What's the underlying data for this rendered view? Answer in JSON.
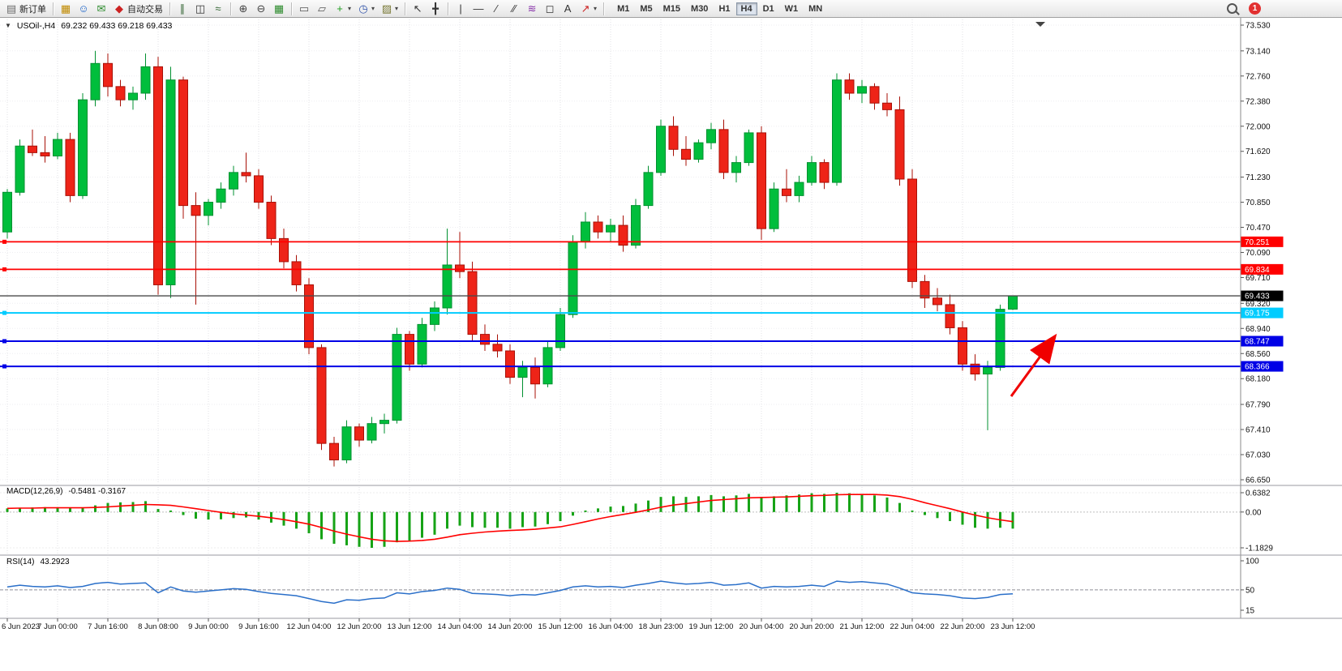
{
  "toolbar": {
    "new_order": "新订单",
    "auto_trading": "自动交易",
    "notification_badge": "1",
    "items": [
      {
        "name": "new-order",
        "glyph": "▤",
        "color": "#6b6b6b",
        "label": "新订单"
      },
      {
        "sep": true
      },
      {
        "name": "data-window",
        "glyph": "▦",
        "color": "#c08a00"
      },
      {
        "name": "navigator",
        "glyph": "☺",
        "color": "#1a62c8"
      },
      {
        "name": "terminal",
        "glyph": "✉",
        "color": "#2a8a2a"
      },
      {
        "name": "auto-trading",
        "glyph": "◆",
        "color": "#cc2222",
        "label": "自动交易"
      },
      {
        "sep": true
      },
      {
        "name": "bar-chart",
        "glyph": "∥",
        "color": "#3a6a3a"
      },
      {
        "name": "candlestick-chart",
        "glyph": "◫",
        "color": "#333333"
      },
      {
        "name": "line-chart",
        "glyph": "≈",
        "color": "#336633"
      },
      {
        "sep": true
      },
      {
        "name": "zoom-in",
        "glyph": "⊕",
        "color": "#444444"
      },
      {
        "name": "zoom-out",
        "glyph": "⊖",
        "color": "#444444"
      },
      {
        "name": "tile-windows",
        "glyph": "▦",
        "color": "#2a8a2a"
      },
      {
        "sep": true
      },
      {
        "name": "cascade-windows",
        "glyph": "▭",
        "color": "#555555"
      },
      {
        "name": "arrange-windows",
        "glyph": "▱",
        "color": "#555555"
      },
      {
        "name": "indicators",
        "glyph": "+",
        "color": "#1e9e1e",
        "dropdown": true
      },
      {
        "name": "periods",
        "glyph": "◷",
        "color": "#3355aa",
        "dropdown": true
      },
      {
        "name": "templates",
        "glyph": "▨",
        "color": "#777733",
        "dropdown": true
      },
      {
        "sep": true
      },
      {
        "name": "cursor",
        "glyph": "↖",
        "color": "#333333"
      },
      {
        "name": "crosshair",
        "glyph": "╋",
        "color": "#333333"
      },
      {
        "sep": true
      },
      {
        "name": "vertical-line",
        "glyph": "|",
        "color": "#333333"
      },
      {
        "name": "horizontal-line",
        "glyph": "—",
        "color": "#333333"
      },
      {
        "name": "trendline",
        "glyph": "∕",
        "color": "#333333"
      },
      {
        "name": "equidistant-channel",
        "glyph": "∕∕",
        "color": "#333333"
      },
      {
        "name": "fibonacci",
        "glyph": "≋",
        "color": "#8833aa"
      },
      {
        "name": "shapes",
        "glyph": "◻",
        "color": "#333333"
      },
      {
        "name": "text",
        "glyph": "A",
        "color": "#333333"
      },
      {
        "name": "arrows",
        "glyph": "↗",
        "color": "#cc2222",
        "dropdown": true
      },
      {
        "sep": true
      }
    ],
    "timeframes": [
      "M1",
      "M5",
      "M15",
      "M30",
      "H1",
      "H4",
      "D1",
      "W1",
      "MN"
    ],
    "active_timeframe": "H4"
  },
  "symbol_bar": {
    "collapse_icon": "▼",
    "symbol": "USOil-,H4",
    "ohlc": "69.232 69.433 69.218 69.433"
  },
  "chart_data": {
    "type": "candlestick",
    "symbol": "USOil-",
    "timeframe": "H4",
    "colors": {
      "up": "#00BE3C",
      "up_border": "#009030",
      "down": "#EE2418",
      "down_border": "#A81007",
      "macd_hist": "#16A316",
      "macd_signal": "#FF0000",
      "rsi": "#2A6FC9"
    },
    "price_axis": [
      "73.530",
      "73.140",
      "72.760",
      "72.380",
      "72.000",
      "71.620",
      "71.230",
      "70.850",
      "70.470",
      "70.090",
      "69.710",
      "69.320",
      "68.940",
      "68.560",
      "68.180",
      "67.790",
      "67.410",
      "67.030",
      "66.650"
    ],
    "x_labels": [
      "6 Jun 2023",
      "7 Jun 00:00",
      "7 Jun 16:00",
      "8 Jun 08:00",
      "9 Jun 00:00",
      "9 Jun 16:00",
      "12 Jun 04:00",
      "12 Jun 20:00",
      "13 Jun 12:00",
      "14 Jun 04:00",
      "14 Jun 20:00",
      "15 Jun 12:00",
      "16 Jun 04:00",
      "18 Jun 23:00",
      "19 Jun 12:00",
      "20 Jun 04:00",
      "20 Jun 20:00",
      "21 Jun 12:00",
      "22 Jun 04:00",
      "22 Jun 20:00",
      "23 Jun 12:00"
    ],
    "x_tick_step": 4,
    "hlines": [
      {
        "price": 70.251,
        "label": "70.251",
        "color": "#FF0000",
        "width": 1.8,
        "anchor": true
      },
      {
        "price": 69.834,
        "label": "69.834",
        "color": "#FF0000",
        "width": 1.8,
        "anchor": true
      },
      {
        "price": 69.433,
        "label": "69.433",
        "color": "#4A4A4A",
        "tag": "#000000",
        "width": 1.3,
        "anchor": false
      },
      {
        "price": 69.175,
        "label": "69.175",
        "color": "#00CCFF",
        "width": 2,
        "anchor": true
      },
      {
        "price": 68.747,
        "label": "68.747",
        "color": "#0000E6",
        "width": 2,
        "anchor": true
      },
      {
        "price": 68.366,
        "label": "68.366",
        "color": "#0000E6",
        "width": 2,
        "anchor": true
      }
    ],
    "candles": [
      [
        70.4,
        71.05,
        70.3,
        71.0
      ],
      [
        71.0,
        71.8,
        70.95,
        71.7
      ],
      [
        71.7,
        71.95,
        71.55,
        71.6
      ],
      [
        71.6,
        71.85,
        71.45,
        71.55
      ],
      [
        71.55,
        71.9,
        71.5,
        71.8
      ],
      [
        71.8,
        71.9,
        70.85,
        70.95
      ],
      [
        70.95,
        72.5,
        70.9,
        72.4
      ],
      [
        72.4,
        73.14,
        72.3,
        72.95
      ],
      [
        72.95,
        73.1,
        72.45,
        72.6
      ],
      [
        72.6,
        72.7,
        72.3,
        72.4
      ],
      [
        72.4,
        72.6,
        72.25,
        72.5
      ],
      [
        72.5,
        73.1,
        72.4,
        72.9
      ],
      [
        72.9,
        73.05,
        69.45,
        69.6
      ],
      [
        69.6,
        72.9,
        69.4,
        72.7
      ],
      [
        72.7,
        72.75,
        70.6,
        70.8
      ],
      [
        70.8,
        71.0,
        69.3,
        70.65
      ],
      [
        70.65,
        70.9,
        70.5,
        70.85
      ],
      [
        70.85,
        71.15,
        70.75,
        71.05
      ],
      [
        71.05,
        71.4,
        70.95,
        71.3
      ],
      [
        71.3,
        71.6,
        71.15,
        71.25
      ],
      [
        71.25,
        71.35,
        70.75,
        70.85
      ],
      [
        70.85,
        70.95,
        70.2,
        70.3
      ],
      [
        70.3,
        70.45,
        69.85,
        69.95
      ],
      [
        69.95,
        70.05,
        69.5,
        69.6
      ],
      [
        69.6,
        69.7,
        68.55,
        68.65
      ],
      [
        68.65,
        68.7,
        67.1,
        67.2
      ],
      [
        67.2,
        67.3,
        66.85,
        66.95
      ],
      [
        66.95,
        67.55,
        66.9,
        67.45
      ],
      [
        67.45,
        67.5,
        67.15,
        67.25
      ],
      [
        67.25,
        67.6,
        67.2,
        67.5
      ],
      [
        67.5,
        67.65,
        67.35,
        67.55
      ],
      [
        67.55,
        68.95,
        67.5,
        68.85
      ],
      [
        68.85,
        68.9,
        68.3,
        68.4
      ],
      [
        68.4,
        69.1,
        68.35,
        69.0
      ],
      [
        69.0,
        69.35,
        68.9,
        69.25
      ],
      [
        69.25,
        70.45,
        69.15,
        69.9
      ],
      [
        69.9,
        70.4,
        69.7,
        69.8
      ],
      [
        69.8,
        69.95,
        68.75,
        68.85
      ],
      [
        68.85,
        69.0,
        68.6,
        68.7
      ],
      [
        68.7,
        68.85,
        68.5,
        68.6
      ],
      [
        68.6,
        68.7,
        68.1,
        68.2
      ],
      [
        68.2,
        68.45,
        67.9,
        68.35
      ],
      [
        68.35,
        68.5,
        67.88,
        68.1
      ],
      [
        68.1,
        68.75,
        68.05,
        68.65
      ],
      [
        68.65,
        69.25,
        68.6,
        69.15
      ],
      [
        69.15,
        70.35,
        69.1,
        70.25
      ],
      [
        70.25,
        70.7,
        70.15,
        70.55
      ],
      [
        70.55,
        70.65,
        70.3,
        70.4
      ],
      [
        70.4,
        70.6,
        70.25,
        70.5
      ],
      [
        70.5,
        70.65,
        70.1,
        70.2
      ],
      [
        70.2,
        70.9,
        70.15,
        70.8
      ],
      [
        70.8,
        71.4,
        70.75,
        71.3
      ],
      [
        71.3,
        72.1,
        71.25,
        72.0
      ],
      [
        72.0,
        72.15,
        71.55,
        71.65
      ],
      [
        71.65,
        71.85,
        71.4,
        71.5
      ],
      [
        71.5,
        71.8,
        71.45,
        71.75
      ],
      [
        71.75,
        72.05,
        71.65,
        71.95
      ],
      [
        71.95,
        72.1,
        71.2,
        71.3
      ],
      [
        71.3,
        71.55,
        71.15,
        71.45
      ],
      [
        71.45,
        71.95,
        71.4,
        71.9
      ],
      [
        71.9,
        72.0,
        70.28,
        70.45
      ],
      [
        70.45,
        71.15,
        70.4,
        71.05
      ],
      [
        71.05,
        71.35,
        70.85,
        70.95
      ],
      [
        70.95,
        71.25,
        70.85,
        71.15
      ],
      [
        71.15,
        71.55,
        71.1,
        71.45
      ],
      [
        71.45,
        71.5,
        71.05,
        71.15
      ],
      [
        71.15,
        72.8,
        71.1,
        72.7
      ],
      [
        72.7,
        72.8,
        72.4,
        72.5
      ],
      [
        72.5,
        72.7,
        72.35,
        72.6
      ],
      [
        72.6,
        72.65,
        72.25,
        72.35
      ],
      [
        72.35,
        72.5,
        72.15,
        72.25
      ],
      [
        72.25,
        72.45,
        71.1,
        71.2
      ],
      [
        71.2,
        71.35,
        69.55,
        69.65
      ],
      [
        69.65,
        69.75,
        69.25,
        69.4
      ],
      [
        69.4,
        69.55,
        69.2,
        69.3
      ],
      [
        69.3,
        69.45,
        68.85,
        68.95
      ],
      [
        68.95,
        69.05,
        68.3,
        68.4
      ],
      [
        68.4,
        68.55,
        68.15,
        68.25
      ],
      [
        68.25,
        68.45,
        67.4,
        68.35
      ],
      [
        68.35,
        69.3,
        68.3,
        69.23
      ],
      [
        69.232,
        69.433,
        69.218,
        69.433
      ]
    ],
    "indicators": [
      {
        "id": "macd",
        "title": "MACD(12,26,9)",
        "values_text": "-0.5481 -0.3167",
        "axis": [
          "0.6382",
          "0.00",
          "-1.1829"
        ],
        "histogram": [
          0.12,
          0.14,
          0.15,
          0.16,
          0.15,
          0.13,
          0.15,
          0.22,
          0.3,
          0.32,
          0.33,
          0.36,
          0.1,
          0.05,
          -0.1,
          -0.22,
          -0.25,
          -0.24,
          -0.2,
          -0.18,
          -0.25,
          -0.35,
          -0.45,
          -0.55,
          -0.7,
          -0.9,
          -1.05,
          -1.1,
          -1.15,
          -1.1829,
          -1.15,
          -1.0,
          -0.95,
          -0.85,
          -0.75,
          -0.55,
          -0.45,
          -0.5,
          -0.52,
          -0.52,
          -0.55,
          -0.5,
          -0.48,
          -0.4,
          -0.3,
          -0.12,
          0.05,
          0.12,
          0.18,
          0.2,
          0.28,
          0.38,
          0.5,
          0.52,
          0.5,
          0.52,
          0.56,
          0.52,
          0.55,
          0.6,
          0.5,
          0.52,
          0.55,
          0.58,
          0.62,
          0.6,
          0.6382,
          0.62,
          0.6,
          0.55,
          0.48,
          0.3,
          0.05,
          -0.1,
          -0.2,
          -0.3,
          -0.42,
          -0.52,
          -0.55,
          -0.52,
          -0.5481
        ],
        "signal": [
          0.12,
          0.13,
          0.13,
          0.14,
          0.14,
          0.14,
          0.14,
          0.15,
          0.17,
          0.2,
          0.22,
          0.25,
          0.24,
          0.22,
          0.17,
          0.11,
          0.05,
          -0.01,
          -0.06,
          -0.1,
          -0.14,
          -0.19,
          -0.25,
          -0.32,
          -0.4,
          -0.51,
          -0.63,
          -0.73,
          -0.82,
          -0.9,
          -0.95,
          -0.97,
          -0.96,
          -0.94,
          -0.9,
          -0.83,
          -0.75,
          -0.7,
          -0.66,
          -0.63,
          -0.61,
          -0.59,
          -0.57,
          -0.53,
          -0.49,
          -0.41,
          -0.32,
          -0.23,
          -0.15,
          -0.08,
          -0.01,
          0.07,
          0.16,
          0.23,
          0.28,
          0.33,
          0.38,
          0.41,
          0.44,
          0.47,
          0.48,
          0.49,
          0.5,
          0.52,
          0.54,
          0.55,
          0.57,
          0.58,
          0.58,
          0.58,
          0.56,
          0.51,
          0.42,
          0.31,
          0.21,
          0.11,
          0.0,
          -0.1,
          -0.19,
          -0.26,
          -0.3167
        ]
      },
      {
        "id": "rsi",
        "title": "RSI(14)",
        "value_text": "43.2923",
        "axis": [
          "100",
          "50",
          "15"
        ],
        "level": 50,
        "values": [
          55,
          58,
          56,
          55,
          57,
          54,
          56,
          61,
          63,
          60,
          61,
          62,
          45,
          55,
          48,
          46,
          48,
          50,
          52,
          51,
          47,
          44,
          42,
          40,
          35,
          30,
          27,
          33,
          32,
          35,
          36,
          45,
          43,
          47,
          49,
          53,
          51,
          44,
          43,
          42,
          40,
          42,
          41,
          45,
          49,
          55,
          57,
          55,
          56,
          54,
          58,
          61,
          65,
          62,
          60,
          61,
          63,
          58,
          59,
          62,
          53,
          56,
          55,
          56,
          58,
          56,
          65,
          63,
          64,
          62,
          60,
          53,
          45,
          43,
          42,
          40,
          36,
          35,
          37,
          42,
          43.2923
        ]
      }
    ],
    "annotation_arrow": {
      "from": [
        1247,
        489
      ],
      "to": [
        1298,
        419
      ],
      "color": "#F00000"
    }
  }
}
